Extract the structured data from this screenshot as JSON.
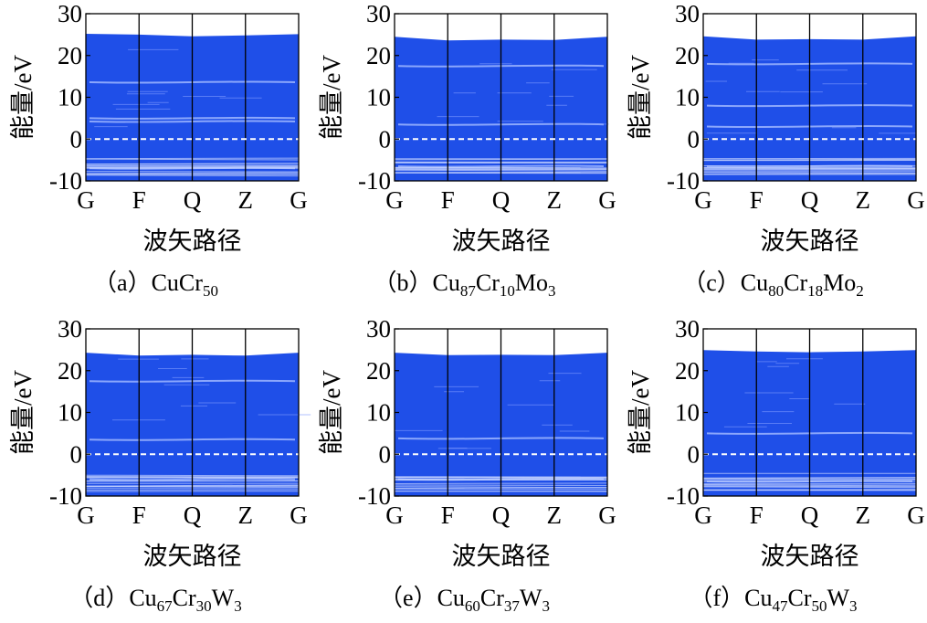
{
  "figure": {
    "panels": [
      {
        "id": "a",
        "caption_prefix": "（a）",
        "caption_parts": [
          {
            "t": "CuCr"
          },
          {
            "s": "50"
          }
        ]
      },
      {
        "id": "b",
        "caption_prefix": "（b）",
        "caption_parts": [
          {
            "t": "Cu"
          },
          {
            "s": "87"
          },
          {
            "t": "Cr"
          },
          {
            "s": "10"
          },
          {
            "t": "Mo"
          },
          {
            "s": "3"
          }
        ]
      },
      {
        "id": "c",
        "caption_prefix": "（c）",
        "caption_parts": [
          {
            "t": "Cu"
          },
          {
            "s": "80"
          },
          {
            "t": "Cr"
          },
          {
            "s": "18"
          },
          {
            "t": "Mo"
          },
          {
            "s": "2"
          }
        ]
      },
      {
        "id": "d",
        "caption_prefix": "（d）",
        "caption_parts": [
          {
            "t": "Cu"
          },
          {
            "s": "67"
          },
          {
            "t": "Cr"
          },
          {
            "s": "30"
          },
          {
            "t": "W"
          },
          {
            "s": "3"
          }
        ]
      },
      {
        "id": "e",
        "caption_prefix": "（e）",
        "caption_parts": [
          {
            "t": "Cu"
          },
          {
            "s": "60"
          },
          {
            "t": "Cr"
          },
          {
            "s": "37"
          },
          {
            "t": "W"
          },
          {
            "s": "3"
          }
        ]
      },
      {
        "id": "f",
        "caption_prefix": "（f）",
        "caption_parts": [
          {
            "t": "Cu"
          },
          {
            "s": "47"
          },
          {
            "t": "Cr"
          },
          {
            "s": "50"
          },
          {
            "t": "W"
          },
          {
            "s": "3"
          }
        ]
      }
    ]
  },
  "chart_data": [
    {
      "type": "area",
      "ylabel": "能量/eV",
      "xlabel": "波矢路径",
      "x_ticks": [
        "G",
        "F",
        "Q",
        "Z",
        "G"
      ],
      "yticks": [
        -10,
        0,
        10,
        20,
        30
      ],
      "ylim": [
        -10,
        30
      ],
      "fermi_level": 0,
      "band_top": [
        25.2,
        25.0,
        24.6,
        24.8,
        25.1
      ],
      "band_bottom": -10,
      "band_color": "#1f4fe8",
      "fermi_color": "#ffffff",
      "grid": false,
      "gaps": [
        5.0,
        4.2,
        13.6,
        -7.0
      ]
    },
    {
      "type": "area",
      "ylabel": "能量/eV",
      "xlabel": "波矢路径",
      "x_ticks": [
        "G",
        "F",
        "Q",
        "Z",
        "G"
      ],
      "yticks": [
        -10,
        0,
        10,
        20,
        30
      ],
      "ylim": [
        -10,
        30
      ],
      "fermi_level": 0,
      "band_top": [
        24.5,
        23.6,
        23.8,
        23.7,
        24.5
      ],
      "band_bottom": -10,
      "band_color": "#1f4fe8",
      "fermi_color": "#ffffff",
      "grid": false,
      "gaps": [
        17.5,
        3.5,
        -6.5
      ]
    },
    {
      "type": "area",
      "ylabel": "能量/eV",
      "xlabel": "波矢路径",
      "x_ticks": [
        "G",
        "F",
        "Q",
        "Z",
        "G"
      ],
      "yticks": [
        -10,
        0,
        10,
        20,
        30
      ],
      "ylim": [
        -10,
        30
      ],
      "fermi_level": 0,
      "band_top": [
        24.6,
        23.8,
        23.9,
        23.8,
        24.6
      ],
      "band_bottom": -10,
      "band_color": "#1f4fe8",
      "fermi_color": "#ffffff",
      "grid": false,
      "gaps": [
        18.0,
        8.0,
        3.0,
        -6.5
      ]
    },
    {
      "type": "area",
      "ylabel": "能量/eV",
      "xlabel": "波矢路径",
      "x_ticks": [
        "G",
        "F",
        "Q",
        "Z",
        "G"
      ],
      "yticks": [
        -10,
        0,
        10,
        20,
        30
      ],
      "ylim": [
        -10,
        30
      ],
      "fermi_level": 0,
      "band_top": [
        24.3,
        23.6,
        23.8,
        23.6,
        24.3
      ],
      "band_bottom": -10,
      "band_color": "#1f4fe8",
      "fermi_color": "#ffffff",
      "grid": false,
      "gaps": [
        17.5,
        3.5,
        -6.0
      ]
    },
    {
      "type": "area",
      "ylabel": "能量/eV",
      "xlabel": "波矢路径",
      "x_ticks": [
        "G",
        "F",
        "Q",
        "Z",
        "G"
      ],
      "yticks": [
        -10,
        0,
        10,
        20,
        30
      ],
      "ylim": [
        -10,
        30
      ],
      "fermi_level": 0,
      "band_top": [
        24.3,
        23.7,
        23.8,
        23.7,
        24.3
      ],
      "band_bottom": -10,
      "band_color": "#1f4fe8",
      "fermi_color": "#ffffff",
      "grid": false,
      "gaps": [
        3.8,
        -6.0
      ]
    },
    {
      "type": "area",
      "ylabel": "能量/eV",
      "xlabel": "波矢路径",
      "x_ticks": [
        "G",
        "F",
        "Q",
        "Z",
        "G"
      ],
      "yticks": [
        -10,
        0,
        10,
        20,
        30
      ],
      "ylim": [
        -10,
        30
      ],
      "fermi_level": 0,
      "band_top": [
        24.9,
        24.6,
        24.4,
        24.6,
        24.9
      ],
      "band_bottom": -10,
      "band_color": "#1f4fe8",
      "fermi_color": "#ffffff",
      "grid": false,
      "gaps": [
        5.0,
        -6.5
      ]
    }
  ]
}
